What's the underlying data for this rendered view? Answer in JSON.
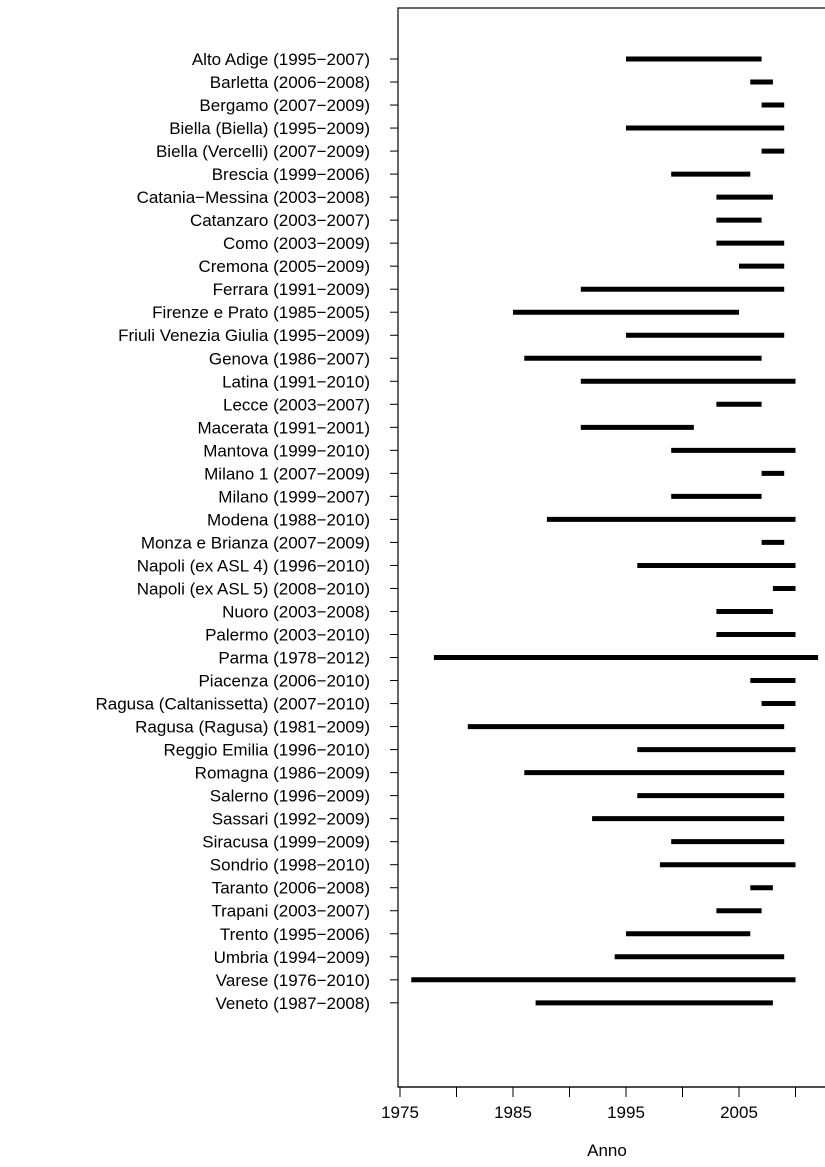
{
  "chart_data": {
    "type": "range_bar",
    "xlabel": "Anno",
    "xticks": [
      1975,
      1985,
      1995,
      2005
    ],
    "xlim": [
      1975,
      2012
    ],
    "grid": false,
    "legend": null,
    "bar_color": "#000000",
    "registries": [
      {
        "label": "Alto Adige (1995−2007)",
        "start": 1995,
        "end": 2007
      },
      {
        "label": "Barletta (2006−2008)",
        "start": 2006,
        "end": 2008
      },
      {
        "label": "Bergamo (2007−2009)",
        "start": 2007,
        "end": 2009
      },
      {
        "label": "Biella (Biella) (1995−2009)",
        "start": 1995,
        "end": 2009
      },
      {
        "label": "Biella (Vercelli) (2007−2009)",
        "start": 2007,
        "end": 2009
      },
      {
        "label": "Brescia (1999−2006)",
        "start": 1999,
        "end": 2006
      },
      {
        "label": "Catania−Messina (2003−2008)",
        "start": 2003,
        "end": 2008
      },
      {
        "label": "Catanzaro (2003−2007)",
        "start": 2003,
        "end": 2007
      },
      {
        "label": "Como (2003−2009)",
        "start": 2003,
        "end": 2009
      },
      {
        "label": "Cremona (2005−2009)",
        "start": 2005,
        "end": 2009
      },
      {
        "label": "Ferrara (1991−2009)",
        "start": 1991,
        "end": 2009
      },
      {
        "label": "Firenze e Prato (1985−2005)",
        "start": 1985,
        "end": 2005
      },
      {
        "label": "Friuli Venezia Giulia (1995−2009)",
        "start": 1995,
        "end": 2009
      },
      {
        "label": "Genova (1986−2007)",
        "start": 1986,
        "end": 2007
      },
      {
        "label": "Latina (1991−2010)",
        "start": 1991,
        "end": 2010
      },
      {
        "label": "Lecce (2003−2007)",
        "start": 2003,
        "end": 2007
      },
      {
        "label": "Macerata (1991−2001)",
        "start": 1991,
        "end": 2001
      },
      {
        "label": "Mantova (1999−2010)",
        "start": 1999,
        "end": 2010
      },
      {
        "label": "Milano 1 (2007−2009)",
        "start": 2007,
        "end": 2009
      },
      {
        "label": "Milano (1999−2007)",
        "start": 1999,
        "end": 2007
      },
      {
        "label": "Modena (1988−2010)",
        "start": 1988,
        "end": 2010
      },
      {
        "label": "Monza e Brianza (2007−2009)",
        "start": 2007,
        "end": 2009
      },
      {
        "label": "Napoli (ex ASL 4) (1996−2010)",
        "start": 1996,
        "end": 2010
      },
      {
        "label": "Napoli (ex ASL 5) (2008−2010)",
        "start": 2008,
        "end": 2010
      },
      {
        "label": "Nuoro (2003−2008)",
        "start": 2003,
        "end": 2008
      },
      {
        "label": "Palermo (2003−2010)",
        "start": 2003,
        "end": 2010
      },
      {
        "label": "Parma (1978−2012)",
        "start": 1978,
        "end": 2012
      },
      {
        "label": "Piacenza (2006−2010)",
        "start": 2006,
        "end": 2010
      },
      {
        "label": "Ragusa (Caltanissetta) (2007−2010)",
        "start": 2007,
        "end": 2010
      },
      {
        "label": "Ragusa (Ragusa) (1981−2009)",
        "start": 1981,
        "end": 2009
      },
      {
        "label": "Reggio Emilia (1996−2010)",
        "start": 1996,
        "end": 2010
      },
      {
        "label": "Romagna (1986−2009)",
        "start": 1986,
        "end": 2009
      },
      {
        "label": "Salerno (1996−2009)",
        "start": 1996,
        "end": 2009
      },
      {
        "label": "Sassari (1992−2009)",
        "start": 1992,
        "end": 2009
      },
      {
        "label": "Siracusa (1999−2009)",
        "start": 1999,
        "end": 2009
      },
      {
        "label": "Sondrio (1998−2010)",
        "start": 1998,
        "end": 2010
      },
      {
        "label": "Taranto (2006−2008)",
        "start": 2006,
        "end": 2008
      },
      {
        "label": "Trapani (2003−2007)",
        "start": 2003,
        "end": 2007
      },
      {
        "label": "Trento (1995−2006)",
        "start": 1995,
        "end": 2006
      },
      {
        "label": "Umbria (1994−2009)",
        "start": 1994,
        "end": 2009
      },
      {
        "label": "Varese (1976−2010)",
        "start": 1976,
        "end": 2010
      },
      {
        "label": "Veneto (1987−2008)",
        "start": 1987,
        "end": 2008
      }
    ]
  }
}
